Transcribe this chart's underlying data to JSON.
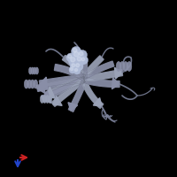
{
  "background_color": "#000000",
  "ribbon_color": "#8a8fa8",
  "ribbon_dark": "#6a7080",
  "ribbon_light": "#9ba3b8",
  "loop_color": "#7a8098",
  "ligand_color": "#b0bcd8",
  "ligand_highlight": "#d8e0f0",
  "ligand_shadow": "#6878a8",
  "axis_x_color": "#cc2222",
  "axis_y_color": "#2244cc",
  "figsize": [
    2.0,
    2.0
  ],
  "dpi": 100
}
